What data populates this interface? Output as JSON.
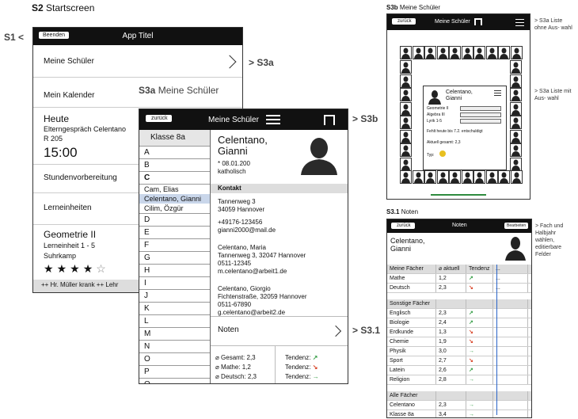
{
  "s2": {
    "heading_prefix": "S2",
    "heading": "Startscreen",
    "link_label": "S1 <",
    "back_button": "Beenden",
    "title": "App Titel",
    "items": [
      "Meine Schüler",
      "Mein Kalender"
    ],
    "today": "Heute",
    "event_line1": "Elterngespräch Celentano",
    "event_line2": "R 205",
    "time": "15:00",
    "item_prep": "Stundenvorbereitung",
    "item_units": "Lerneinheiten",
    "subject": "Geometrie II",
    "unit": "Lerneinheit 1 - 5",
    "publisher": "Suhrkamp",
    "stars_filled": 4,
    "stars_total": 5,
    "ticker": "++ Hr. Müller krank ++ Lehr",
    "arrow_label": "> S3a"
  },
  "s3a": {
    "heading_prefix": "S3a",
    "heading": "Meine Schüler",
    "back_button": "zurück",
    "title": "Meine Schüler",
    "arrow_label_b": "> S3b",
    "class_header": "Klasse 8a",
    "letters_top": [
      "A",
      "B",
      "C"
    ],
    "c_names": [
      "Cam, Elias",
      "Celentano, Gianni",
      "Cilim, Özgür"
    ],
    "letters_bottom": [
      "D",
      "E",
      "F",
      "G",
      "H",
      "I",
      "J",
      "K",
      "L",
      "M",
      "N",
      "O",
      "P",
      "Q",
      "R",
      "S"
    ],
    "student_name1": "Celentano,",
    "student_name2": "Gianni",
    "birth": "* 08.01.200",
    "religion": "katholisch",
    "contact_header": "Kontakt",
    "contact": [
      "Tannenweg 3",
      "34059 Hannover",
      "+49176-123456",
      "gianni2000@mail.de",
      "Celentano, Maria",
      "Tannenweg 3, 32047 Hannover",
      "0511-12345",
      "m.celentano@arbeit1.de",
      "Celentano, Giorgio",
      "Fichtenstraße, 32059 Hannover",
      "0511-67890",
      "g.celentano@arbeit2.de"
    ],
    "grades_link": "Noten",
    "arrow_label_31": "> S3.1",
    "stats": [
      "Gesamt: 2,3",
      "Mathe: 1,2",
      "Deutsch: 2,3"
    ],
    "tendency": [
      "Tendenz:",
      "Tendenz:",
      "Tendenz:"
    ]
  },
  "s3b": {
    "heading_prefix": "S3b",
    "heading": "Meine Schüler",
    "back_button": "zurück",
    "title": "Meine Schüler",
    "note_a1": "> S3a Liste ohne Aus- wahl",
    "note_a2": "> S3a Liste mit Aus- wahl",
    "popup_name1": "Celentano,",
    "popup_name2": "Gianni",
    "popup_rows": [
      "Geometrie II",
      "Algebra III",
      "Lyrik 1-5"
    ],
    "popup_note": "Fehlt heute bis 7.2. entschuldigt",
    "popup_avg": "Aktuell gesamt: 2,3",
    "popup_type": "Typ:"
  },
  "s31": {
    "heading_prefix": "S3.1",
    "heading": "Noten",
    "back_button": "zurück",
    "title": "Noten",
    "edit_button": "Bearbeiten",
    "side_note": "> Fach und Halbjahr wählen, editierbare Felder",
    "name1": "Celentano,",
    "name2": "Gianni",
    "head_subjects": "Meine Fächer",
    "head_current": "aktuell",
    "head_trend": "Tendenz",
    "my_subjects": [
      [
        "Mathe",
        "1,2"
      ],
      [
        "Deutsch",
        "2,3"
      ]
    ],
    "other_header": "Sonstige Fächer",
    "other_subjects": [
      [
        "Englisch",
        "2,3"
      ],
      [
        "Biologie",
        "2,4"
      ],
      [
        "Erdkunde",
        "1,3"
      ],
      [
        "Chemie",
        "1,9"
      ],
      [
        "Physik",
        "3,0"
      ],
      [
        "Sport",
        "2,7"
      ],
      [
        "Latein",
        "2,6"
      ],
      [
        "Religion",
        "2,8"
      ]
    ],
    "all_header": "Alle Fächer",
    "all_subjects": [
      [
        "Celentano",
        "2,3"
      ],
      [
        "Klasse 8a",
        "3,4"
      ]
    ],
    "dots": "..."
  },
  "colors": {
    "dark": "#111111",
    "selected": "#c9d6ea",
    "green": "#3aa04a",
    "red": "#d9472b",
    "accent_green": "#2e8b3e",
    "blue_line": "#2a64c8"
  }
}
